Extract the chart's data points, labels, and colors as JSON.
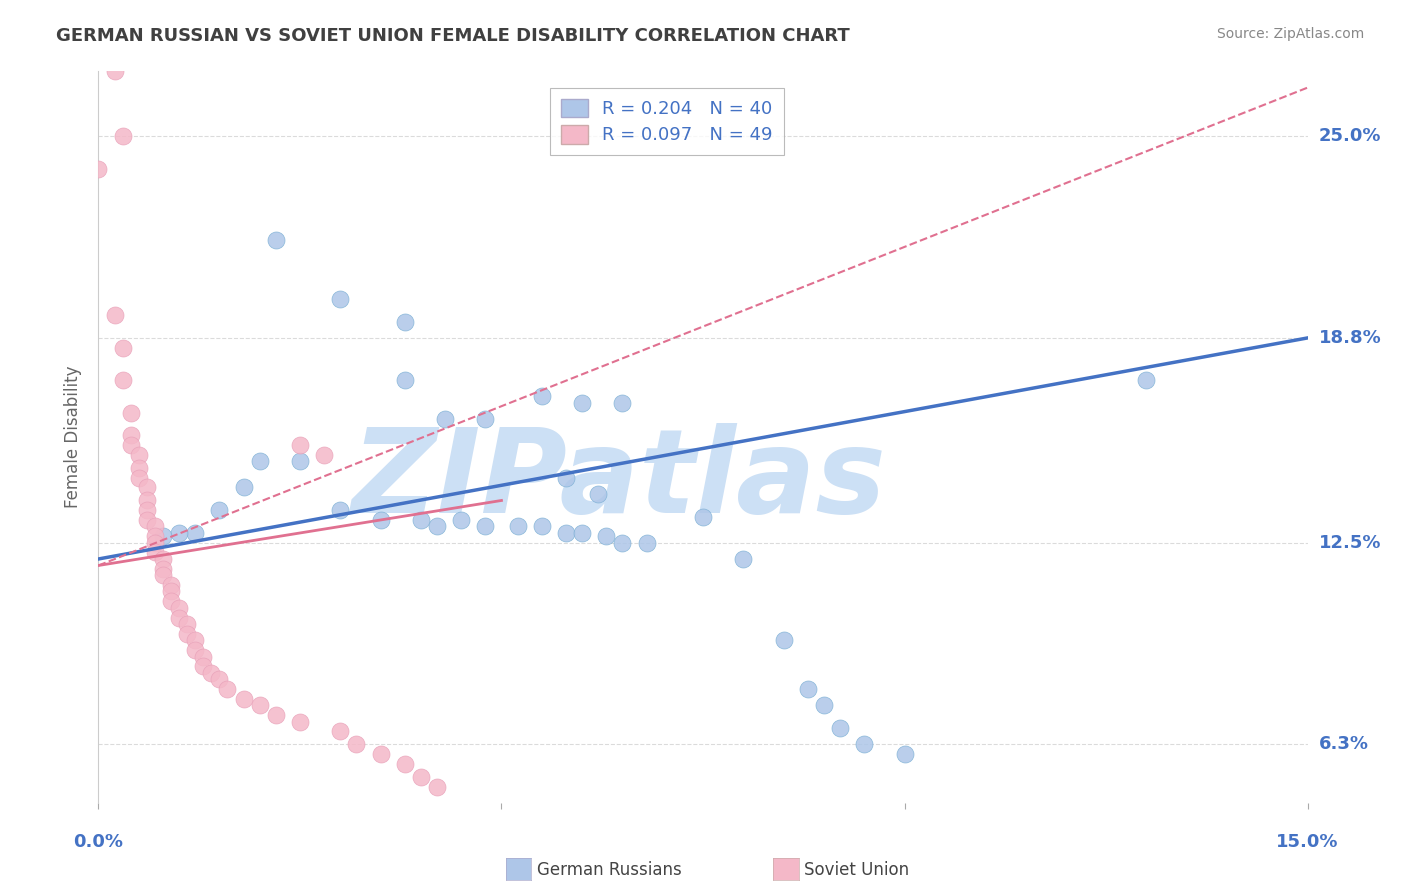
{
  "title": "GERMAN RUSSIAN VS SOVIET UNION FEMALE DISABILITY CORRELATION CHART",
  "source": "Source: ZipAtlas.com",
  "ylabel": "Female Disability",
  "x_min": 0.0,
  "x_max": 0.15,
  "y_min": 0.045,
  "y_max": 0.27,
  "yticks": [
    0.063,
    0.125,
    0.188,
    0.25
  ],
  "ytick_labels": [
    "6.3%",
    "12.5%",
    "18.8%",
    "25.0%"
  ],
  "legend_label_blue": "R = 0.204   N = 40",
  "legend_label_pink": "R = 0.097   N = 49",
  "color_blue": "#aec6e8",
  "color_pink": "#f4b8c8",
  "color_blue_line": "#4472c4",
  "color_pink_line": "#e07090",
  "color_axis_label": "#4472c4",
  "watermark": "ZIPatlas",
  "watermark_color": "#cce0f5",
  "background_color": "#ffffff",
  "grid_color": "#cccccc",
  "title_color": "#404040",
  "blue_scatter": [
    [
      0.022,
      0.218
    ],
    [
      0.03,
      0.2
    ],
    [
      0.038,
      0.193
    ],
    [
      0.038,
      0.175
    ],
    [
      0.043,
      0.163
    ],
    [
      0.048,
      0.163
    ],
    [
      0.025,
      0.15
    ],
    [
      0.02,
      0.15
    ],
    [
      0.018,
      0.142
    ],
    [
      0.015,
      0.135
    ],
    [
      0.03,
      0.135
    ],
    [
      0.035,
      0.132
    ],
    [
      0.04,
      0.132
    ],
    [
      0.042,
      0.13
    ],
    [
      0.045,
      0.132
    ],
    [
      0.048,
      0.13
    ],
    [
      0.052,
      0.13
    ],
    [
      0.055,
      0.13
    ],
    [
      0.058,
      0.128
    ],
    [
      0.06,
      0.128
    ],
    [
      0.063,
      0.127
    ],
    [
      0.065,
      0.125
    ],
    [
      0.068,
      0.125
    ],
    [
      0.012,
      0.128
    ],
    [
      0.01,
      0.128
    ],
    [
      0.008,
      0.127
    ],
    [
      0.055,
      0.17
    ],
    [
      0.06,
      0.168
    ],
    [
      0.065,
      0.168
    ],
    [
      0.058,
      0.145
    ],
    [
      0.062,
      0.14
    ],
    [
      0.075,
      0.133
    ],
    [
      0.08,
      0.12
    ],
    [
      0.085,
      0.095
    ],
    [
      0.088,
      0.08
    ],
    [
      0.09,
      0.075
    ],
    [
      0.092,
      0.068
    ],
    [
      0.095,
      0.063
    ],
    [
      0.1,
      0.06
    ],
    [
      0.13,
      0.175
    ]
  ],
  "pink_scatter": [
    [
      0.002,
      0.27
    ],
    [
      0.003,
      0.25
    ],
    [
      0.002,
      0.195
    ],
    [
      0.003,
      0.185
    ],
    [
      0.003,
      0.175
    ],
    [
      0.004,
      0.165
    ],
    [
      0.004,
      0.158
    ],
    [
      0.004,
      0.155
    ],
    [
      0.005,
      0.152
    ],
    [
      0.005,
      0.148
    ],
    [
      0.005,
      0.145
    ],
    [
      0.006,
      0.142
    ],
    [
      0.006,
      0.138
    ],
    [
      0.006,
      0.135
    ],
    [
      0.006,
      0.132
    ],
    [
      0.007,
      0.13
    ],
    [
      0.007,
      0.127
    ],
    [
      0.007,
      0.125
    ],
    [
      0.007,
      0.122
    ],
    [
      0.008,
      0.12
    ],
    [
      0.008,
      0.117
    ],
    [
      0.008,
      0.115
    ],
    [
      0.009,
      0.112
    ],
    [
      0.009,
      0.11
    ],
    [
      0.009,
      0.107
    ],
    [
      0.01,
      0.105
    ],
    [
      0.01,
      0.102
    ],
    [
      0.011,
      0.1
    ],
    [
      0.011,
      0.097
    ],
    [
      0.012,
      0.095
    ],
    [
      0.012,
      0.092
    ],
    [
      0.013,
      0.09
    ],
    [
      0.013,
      0.087
    ],
    [
      0.014,
      0.085
    ],
    [
      0.015,
      0.083
    ],
    [
      0.016,
      0.08
    ],
    [
      0.018,
      0.077
    ],
    [
      0.02,
      0.075
    ],
    [
      0.022,
      0.072
    ],
    [
      0.025,
      0.07
    ],
    [
      0.025,
      0.155
    ],
    [
      0.028,
      0.152
    ],
    [
      0.03,
      0.067
    ],
    [
      0.032,
      0.063
    ],
    [
      0.035,
      0.06
    ],
    [
      0.038,
      0.057
    ],
    [
      0.04,
      0.053
    ],
    [
      0.042,
      0.05
    ],
    [
      0.0,
      0.24
    ]
  ],
  "blue_trend_x": [
    0.0,
    0.15
  ],
  "blue_trend_y": [
    0.12,
    0.188
  ],
  "pink_trend_x": [
    0.0,
    0.15
  ],
  "pink_trend_y": [
    0.118,
    0.265
  ],
  "bottom_label_blue": "German Russians",
  "bottom_label_pink": "Soviet Union"
}
